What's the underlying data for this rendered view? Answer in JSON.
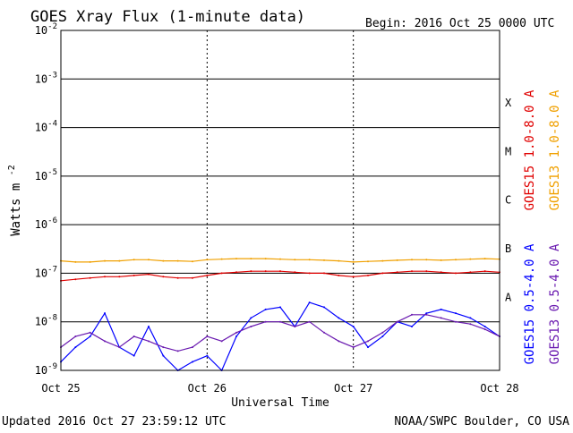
{
  "header": {
    "title": "GOES Xray Flux (1-minute data)",
    "begin": "Begin:  2016 Oct 25 0000 UTC"
  },
  "footer": {
    "updated": "Updated 2016 Oct 27 23:59:12 UTC",
    "credit": "NOAA/SWPC Boulder, CO USA"
  },
  "chart_data": {
    "type": "line",
    "ylabel": "Watts m",
    "ylabel_sup": "-2",
    "xlabel": "Universal Time",
    "yscale": "log",
    "ylim": [
      1e-09,
      0.01
    ],
    "y_ticks": [
      {
        "base": "10",
        "exp": "-9",
        "value": 1e-09
      },
      {
        "base": "10",
        "exp": "-8",
        "value": 1e-08
      },
      {
        "base": "10",
        "exp": "-7",
        "value": 1e-07
      },
      {
        "base": "10",
        "exp": "-6",
        "value": 1e-06
      },
      {
        "base": "10",
        "exp": "-5",
        "value": 1e-05
      },
      {
        "base": "10",
        "exp": "-4",
        "value": 0.0001
      },
      {
        "base": "10",
        "exp": "-3",
        "value": 0.001
      },
      {
        "base": "10",
        "exp": "-2",
        "value": 0.01
      }
    ],
    "x_ticks": [
      "Oct 25",
      "Oct 26",
      "Oct 27",
      "Oct 28"
    ],
    "x_units": "days since 2016 Oct 25 0000 UTC",
    "xlim": [
      0,
      3
    ],
    "flare_classes": [
      {
        "label": "A",
        "min": 1e-08
      },
      {
        "label": "B",
        "min": 1e-07
      },
      {
        "label": "C",
        "min": 1e-06
      },
      {
        "label": "M",
        "min": 1e-05
      },
      {
        "label": "X",
        "min": 0.0001
      }
    ],
    "series": [
      {
        "name": "GOES15 1.0-8.0 A",
        "color": "#e00000",
        "x": [
          0,
          0.1,
          0.2,
          0.3,
          0.4,
          0.5,
          0.6,
          0.7,
          0.8,
          0.9,
          1.0,
          1.1,
          1.2,
          1.3,
          1.4,
          1.5,
          1.6,
          1.7,
          1.8,
          1.9,
          2.0,
          2.1,
          2.2,
          2.3,
          2.4,
          2.5,
          2.6,
          2.7,
          2.8,
          2.9,
          3.0
        ],
        "values": [
          7e-08,
          7.5e-08,
          8e-08,
          8.5e-08,
          8.5e-08,
          9e-08,
          9.5e-08,
          8.5e-08,
          8e-08,
          8e-08,
          9e-08,
          1e-07,
          1.05e-07,
          1.1e-07,
          1.1e-07,
          1.1e-07,
          1.05e-07,
          1e-07,
          1e-07,
          9e-08,
          8.5e-08,
          9e-08,
          1e-07,
          1.05e-07,
          1.1e-07,
          1.1e-07,
          1.05e-07,
          1e-07,
          1.05e-07,
          1.1e-07,
          1.05e-07
        ]
      },
      {
        "name": "GOES13 1.0-8.0 A",
        "color": "#f0a000",
        "x": [
          0,
          0.1,
          0.2,
          0.3,
          0.4,
          0.5,
          0.6,
          0.7,
          0.8,
          0.9,
          1.0,
          1.1,
          1.2,
          1.3,
          1.4,
          1.5,
          1.6,
          1.7,
          1.8,
          1.9,
          2.0,
          2.1,
          2.2,
          2.3,
          2.4,
          2.5,
          2.6,
          2.7,
          2.8,
          2.9,
          3.0
        ],
        "values": [
          1.8e-07,
          1.7e-07,
          1.7e-07,
          1.8e-07,
          1.8e-07,
          1.9e-07,
          1.9e-07,
          1.8e-07,
          1.8e-07,
          1.75e-07,
          1.9e-07,
          1.95e-07,
          2e-07,
          2e-07,
          2e-07,
          1.95e-07,
          1.9e-07,
          1.9e-07,
          1.85e-07,
          1.8e-07,
          1.7e-07,
          1.75e-07,
          1.8e-07,
          1.85e-07,
          1.9e-07,
          1.9e-07,
          1.85e-07,
          1.9e-07,
          1.95e-07,
          2e-07,
          1.95e-07
        ]
      },
      {
        "name": "GOES15 0.5-4.0 A",
        "color": "#0000ff",
        "x": [
          0,
          0.1,
          0.2,
          0.3,
          0.4,
          0.5,
          0.6,
          0.7,
          0.8,
          0.9,
          1.0,
          1.1,
          1.2,
          1.3,
          1.4,
          1.5,
          1.6,
          1.7,
          1.8,
          1.9,
          2.0,
          2.1,
          2.2,
          2.3,
          2.4,
          2.5,
          2.6,
          2.7,
          2.8,
          2.9,
          3.0
        ],
        "values": [
          1.5e-09,
          3e-09,
          5e-09,
          1.5e-08,
          3e-09,
          2e-09,
          8e-09,
          2e-09,
          1e-09,
          1.5e-09,
          2e-09,
          1e-09,
          5e-09,
          1.2e-08,
          1.8e-08,
          2e-08,
          8e-09,
          2.5e-08,
          2e-08,
          1.2e-08,
          8e-09,
          3e-09,
          5e-09,
          1e-08,
          8e-09,
          1.5e-08,
          1.8e-08,
          1.5e-08,
          1.2e-08,
          8e-09,
          5e-09
        ]
      },
      {
        "name": "GOES13 0.5-4.0 A",
        "color": "#6a1ab0",
        "x": [
          0,
          0.1,
          0.2,
          0.3,
          0.4,
          0.5,
          0.6,
          0.7,
          0.8,
          0.9,
          1.0,
          1.1,
          1.2,
          1.3,
          1.4,
          1.5,
          1.6,
          1.7,
          1.8,
          1.9,
          2.0,
          2.1,
          2.2,
          2.3,
          2.4,
          2.5,
          2.6,
          2.7,
          2.8,
          2.9,
          3.0
        ],
        "values": [
          3e-09,
          5e-09,
          6e-09,
          4e-09,
          3e-09,
          5e-09,
          4e-09,
          3e-09,
          2.5e-09,
          3e-09,
          5e-09,
          4e-09,
          6e-09,
          8e-09,
          1e-08,
          1e-08,
          8e-09,
          1e-08,
          6e-09,
          4e-09,
          3e-09,
          4e-09,
          6e-09,
          1e-08,
          1.4e-08,
          1.4e-08,
          1.2e-08,
          1e-08,
          9e-09,
          7e-09,
          5e-09
        ]
      }
    ]
  }
}
